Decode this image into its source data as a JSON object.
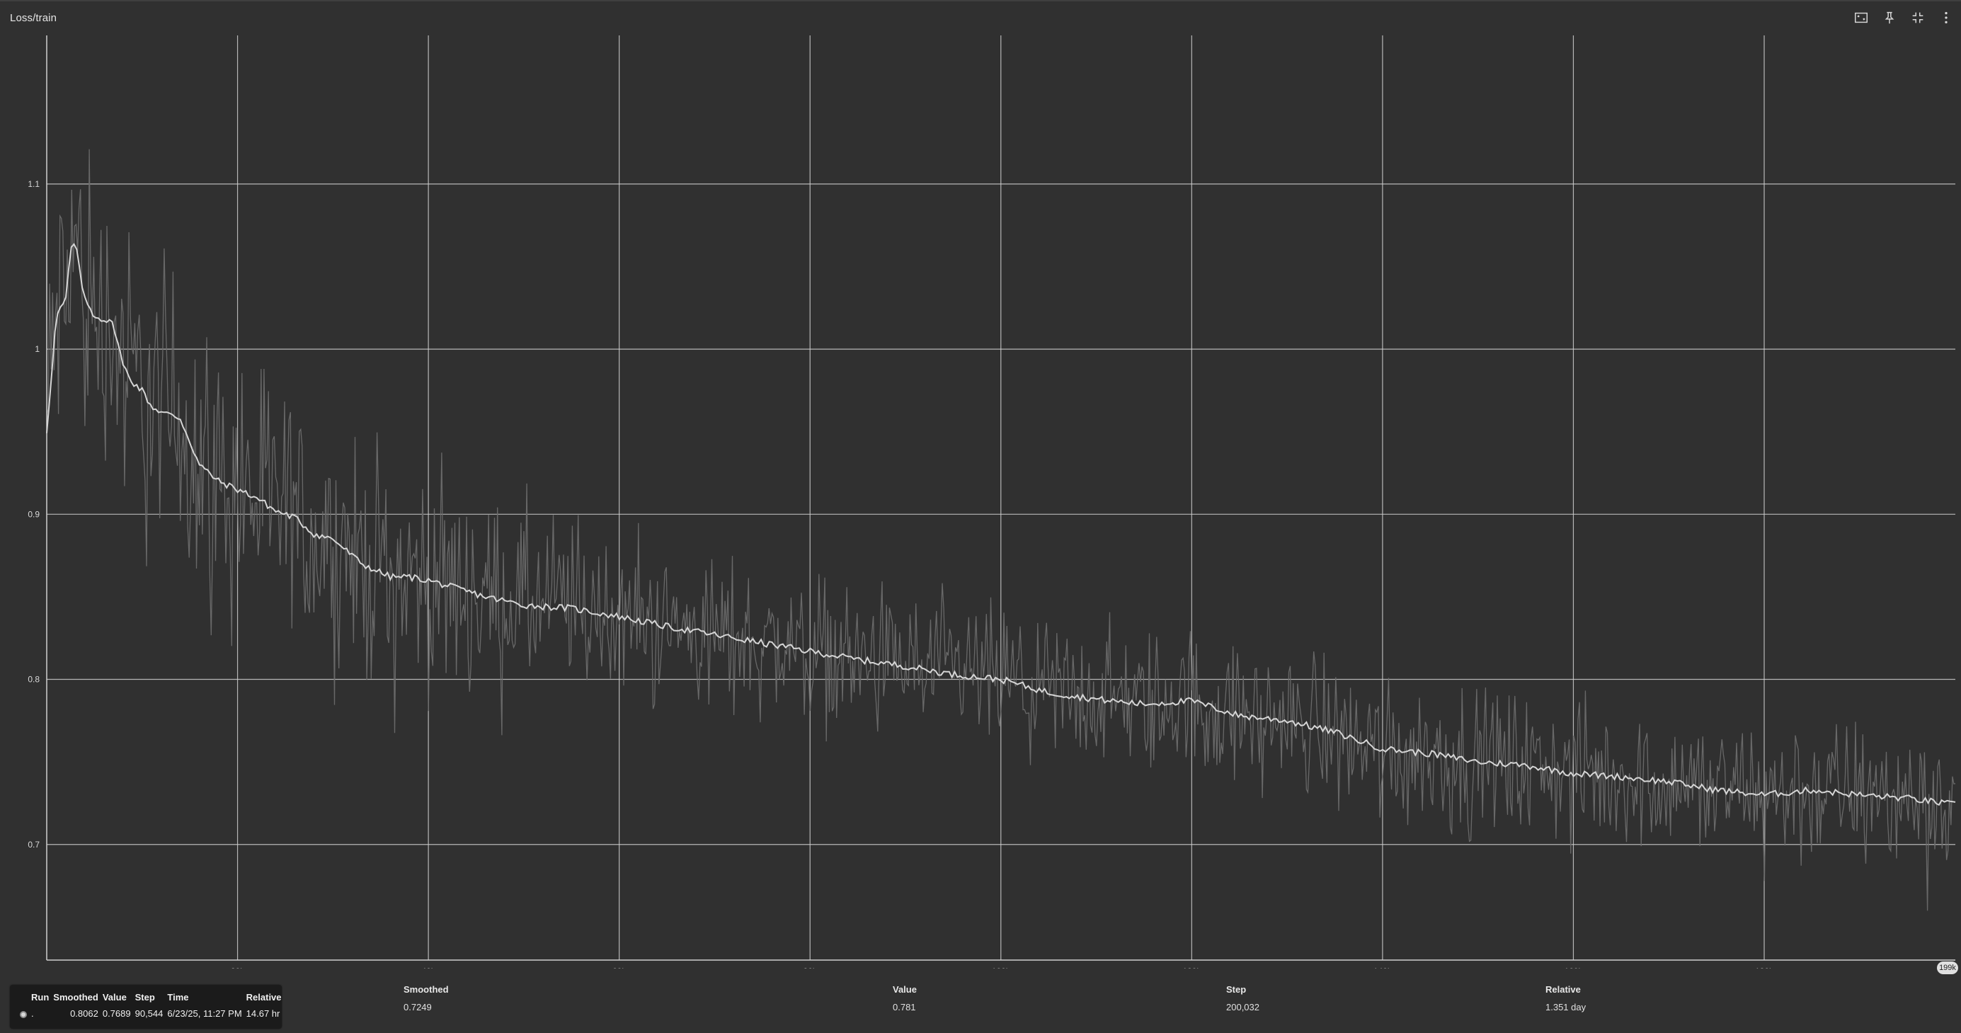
{
  "header": {
    "title": "Loss/train",
    "icons": [
      "fit-domain-icon",
      "pin-icon",
      "collapse-icon",
      "more-vert-icon"
    ]
  },
  "chart_data": {
    "type": "line",
    "title": "Loss/train",
    "xlabel": "",
    "ylabel": "",
    "xlim": [
      0,
      200032
    ],
    "ylim": [
      0.63,
      1.19
    ],
    "grid": true,
    "x_ticks": [
      20000,
      40000,
      60000,
      80000,
      100000,
      120000,
      140000,
      160000,
      180000
    ],
    "x_tick_labels": [
      "20k",
      "40k",
      "60k",
      "80k",
      "100k",
      "120k",
      "140k",
      "160k",
      "180k"
    ],
    "y_ticks": [
      0.7,
      0.8,
      0.9,
      1.0,
      1.1
    ],
    "y_tick_labels": [
      "0.7",
      "0.8",
      "0.9",
      "1",
      "1.1"
    ],
    "x_end_badge": "199k",
    "series": [
      {
        "role": "smoothed",
        "x": [
          0,
          1000,
          2000,
          2500,
          3000,
          3500,
          4000,
          5000,
          6000,
          7000,
          8000,
          9000,
          10000,
          11000,
          12000,
          14000,
          16000,
          17000,
          18000,
          20000,
          22000,
          24000,
          26000,
          28000,
          30000,
          33000,
          36000,
          38000,
          40000,
          43000,
          46000,
          50000,
          55000,
          60000,
          65000,
          70000,
          75000,
          80000,
          85000,
          90000,
          95000,
          100000,
          105000,
          110000,
          115000,
          120000,
          125000,
          130000,
          135000,
          140000,
          145000,
          150000,
          155000,
          160000,
          165000,
          170000,
          175000,
          180000,
          185000,
          190000,
          195000,
          200032
        ],
        "y": [
          0.95,
          1.02,
          1.03,
          1.06,
          1.065,
          1.045,
          1.03,
          1.02,
          1.018,
          1.015,
          0.99,
          0.98,
          0.975,
          0.965,
          0.962,
          0.958,
          0.93,
          0.925,
          0.92,
          0.915,
          0.91,
          0.902,
          0.898,
          0.888,
          0.885,
          0.87,
          0.862,
          0.862,
          0.86,
          0.855,
          0.85,
          0.845,
          0.843,
          0.838,
          0.832,
          0.827,
          0.822,
          0.817,
          0.812,
          0.808,
          0.803,
          0.8,
          0.792,
          0.788,
          0.785,
          0.787,
          0.778,
          0.775,
          0.768,
          0.758,
          0.755,
          0.75,
          0.748,
          0.743,
          0.741,
          0.738,
          0.733,
          0.73,
          0.733,
          0.73,
          0.728,
          0.724
        ]
      },
      {
        "role": "raw",
        "x": [
          0,
          200032
        ],
        "y": [
          0.9,
          0.72
        ],
        "noise": [
          0.18,
          0.08
        ]
      }
    ]
  },
  "tooltip": {
    "headers": [
      "Run",
      "Smoothed",
      "Value",
      "Step",
      "Time",
      "Relative"
    ],
    "row": {
      "run": ".",
      "smoothed": "0.8062",
      "value": "0.7689",
      "step": "90,544",
      "time": "6/23/25, 11:27 PM",
      "relative": "14.67 hr"
    }
  },
  "footer": {
    "smoothed_label": "Smoothed",
    "smoothed_value": "0.7249",
    "value_label": "Value",
    "value_value": "0.781",
    "step_label": "Step",
    "step_value": "200,032",
    "relative_label": "Relative",
    "relative_value": "1.351 day"
  },
  "colors": {
    "background": "#303030",
    "grid": "#cfcfcf",
    "smoothed": "#d6d6d6",
    "raw": "#6b6b6b"
  }
}
